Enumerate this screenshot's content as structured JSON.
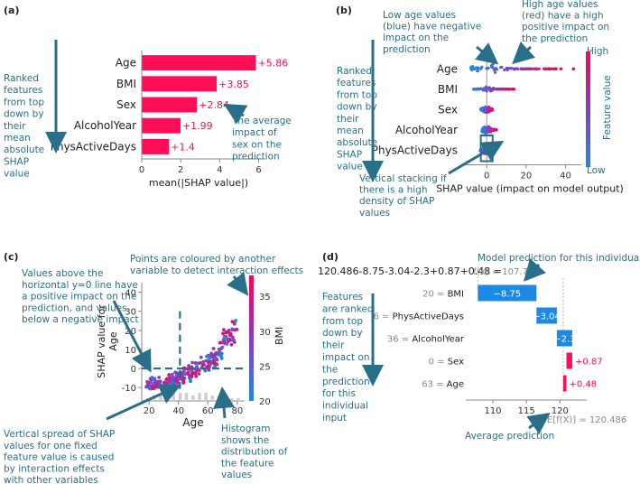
{
  "panels": {
    "a": "(a)",
    "b": "(b)",
    "c": "(c)",
    "d": "(d)"
  },
  "colors": {
    "shap_pos": "#ff0d57",
    "shap_neg": "#1e88e5",
    "annotation": "#2a6f8a",
    "low": "#1e88e5",
    "high": "#ff0051"
  },
  "chart_data": [
    {
      "id": "a",
      "type": "bar",
      "title": "",
      "categories": [
        "Age",
        "BMI",
        "Sex",
        "AlcoholYear",
        "PhysActiveDays"
      ],
      "values": [
        5.86,
        3.85,
        2.84,
        1.99,
        1.4
      ],
      "value_labels": [
        "+5.86",
        "+3.85",
        "+2.84",
        "+1.99",
        "+1.4"
      ],
      "xlabel": "mean(|SHAP value|)",
      "xlim": [
        0,
        6.3
      ],
      "xticks": [
        0,
        2,
        4,
        6
      ],
      "annotations": {
        "left": [
          "Ranked",
          "features",
          "from top",
          "down by",
          "their",
          "mean",
          "absolute",
          "SHAP",
          "value"
        ],
        "right": [
          "The average",
          "impact of",
          "sex on the",
          "prediction"
        ]
      }
    },
    {
      "id": "b",
      "type": "scatter",
      "subtype": "beeswarm",
      "categories": [
        "Age",
        "BMI",
        "Sex",
        "AlcoholYear",
        "PhysActiveDays"
      ],
      "xlabel": "SHAP value (impact on model output)",
      "xlim": [
        -12,
        48
      ],
      "xticks": [
        0,
        20,
        40
      ],
      "colorbar": {
        "label": "Feature value",
        "high": "High",
        "low": "Low"
      },
      "annotations": {
        "left": [
          "Ranked",
          "features",
          "from top",
          "down by",
          "their",
          "mean",
          "absolute",
          "SHAP",
          "value"
        ],
        "top_left": [
          "Low age values",
          "(blue) have  negative",
          "impact on the",
          "prediction"
        ],
        "top_right": [
          "High age values",
          "(red) have a high",
          "positive impact on",
          "the prediction"
        ],
        "bottom": [
          "Vertical stacking if",
          "there is a high",
          "density of SHAP",
          "values"
        ]
      }
    },
    {
      "id": "c",
      "type": "scatter",
      "subtype": "dependence",
      "xlabel": "Age",
      "ylabel": "SHAP value for Age",
      "ylabel_lines": [
        "SHAP value for",
        "Age"
      ],
      "xlim": [
        15,
        85
      ],
      "ylim": [
        -17,
        45
      ],
      "xticks": [
        20,
        40,
        60,
        80
      ],
      "yticks": [
        -10,
        0,
        10,
        20,
        30,
        40
      ],
      "colorbar": {
        "label": "BMI",
        "ticks": [
          20,
          25,
          30,
          35
        ]
      },
      "annotations": {
        "top_left": [
          "Values above the",
          "horizontal y=0 line have",
          "a positive impact on the",
          "prediction, and values",
          "below a negative impact"
        ],
        "top_right": [
          "Points are coloured by another",
          "variable to detect interaction effects"
        ],
        "bottom_left": [
          "Vertical spread of SHAP",
          "values for one fixed",
          "feature value is caused",
          "by interaction effects",
          "with other variables"
        ],
        "bottom_right": [
          "Histogram",
          "shows the",
          "distribution of",
          "the feature",
          "values"
        ]
      }
    },
    {
      "id": "d",
      "type": "bar",
      "subtype": "waterfall",
      "formula": "120.486-8.75-3.04-2.3+0.87+0.48 =",
      "fx_label": "f(x) = 107.752",
      "fx_value": 107.752,
      "base_label": "E[f(X)] = 120.486",
      "base_value": 120.486,
      "features": [
        {
          "label": "20 = BMI",
          "value": -8.75,
          "text": "−8.75"
        },
        {
          "label": "6 = PhysActiveDays",
          "value": -3.04,
          "text": "−3.04"
        },
        {
          "label": "36 = AlcoholYear",
          "value": -2.3,
          "text": "−2.3"
        },
        {
          "label": "0 = Sex",
          "value": 0.87,
          "text": "+0.87"
        },
        {
          "label": "63 = Age",
          "value": 0.48,
          "text": "+0.48"
        }
      ],
      "xlim": [
        106.5,
        124
      ],
      "xticks": [
        110,
        115,
        120
      ],
      "annotations": {
        "top": "Model prediction for this individual",
        "left": [
          "Features",
          "are ranked",
          "from top",
          "down by",
          "their",
          "impact on",
          "the",
          "prediction",
          "for this",
          "individual",
          "input"
        ],
        "bottom": "Average prediction"
      }
    }
  ]
}
